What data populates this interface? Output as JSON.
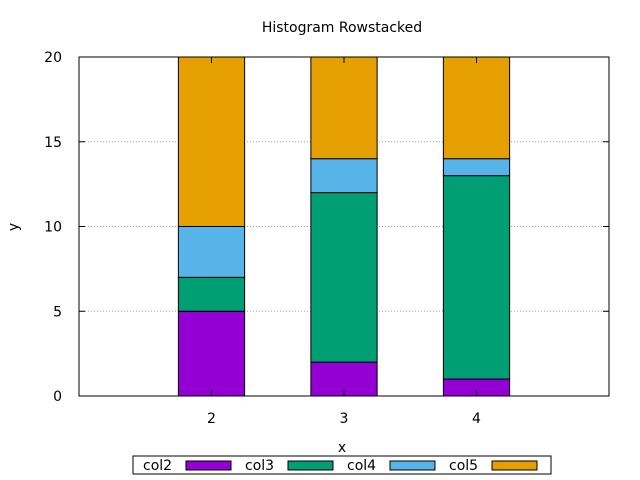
{
  "chart_data": {
    "type": "bar",
    "stacked": true,
    "title": "Histogram Rowstacked",
    "xlabel": "x",
    "ylabel": "y",
    "categories": [
      "2",
      "3",
      "4"
    ],
    "ylim": [
      0,
      20
    ],
    "yticks": [
      0,
      5,
      10,
      15,
      20
    ],
    "grid": true,
    "legend_position": "bottom",
    "series": [
      {
        "name": "col2",
        "color": "#9400d3",
        "values": [
          5,
          2,
          1
        ]
      },
      {
        "name": "col3",
        "color": "#009e73",
        "values": [
          2,
          10,
          12
        ]
      },
      {
        "name": "col4",
        "color": "#56b4e9",
        "values": [
          3,
          2,
          1
        ]
      },
      {
        "name": "col5",
        "color": "#e69f00",
        "values": [
          10,
          6,
          6
        ]
      }
    ]
  }
}
